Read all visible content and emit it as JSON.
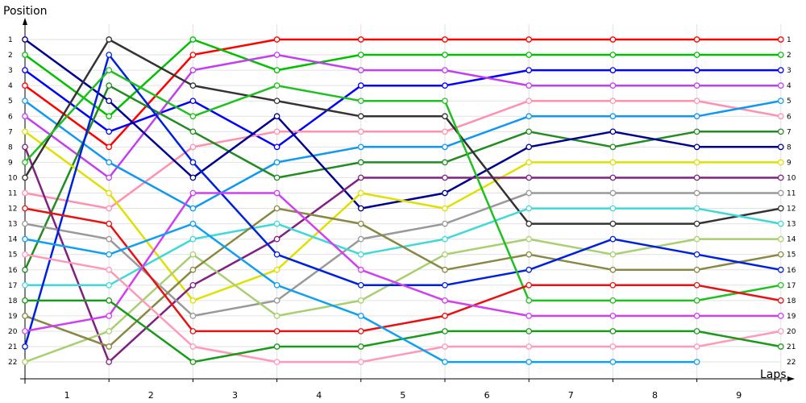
{
  "chart_data": {
    "type": "line",
    "ylabel": "Position",
    "xlabel": "Laps",
    "x_ticks": [
      "1",
      "2",
      "3",
      "4",
      "5",
      "6",
      "7",
      "8",
      "9"
    ],
    "y_ticks": [
      "1",
      "2",
      "3",
      "4",
      "5",
      "6",
      "7",
      "8",
      "9",
      "10",
      "11",
      "12",
      "13",
      "14",
      "15",
      "16",
      "17",
      "18",
      "19",
      "20",
      "21",
      "22"
    ],
    "ylim": [
      22,
      1
    ],
    "grid": true,
    "series": [
      {
        "color": "#ff0000",
        "values": [
          4,
          8,
          2,
          1,
          1,
          1,
          1,
          1,
          1,
          1
        ]
      },
      {
        "color": "#00c000",
        "values": [
          2,
          6,
          1,
          3,
          2,
          2,
          2,
          2,
          2,
          2
        ]
      },
      {
        "color": "#0000ff",
        "values": [
          3,
          7,
          5,
          8,
          4,
          4,
          3,
          3,
          3,
          3
        ]
      },
      {
        "color": "#c040f0",
        "values": [
          6,
          10,
          3,
          2,
          3,
          3,
          4,
          4,
          4,
          4
        ]
      },
      {
        "color": "#ff90b0",
        "values": [
          11,
          12,
          8,
          7,
          7,
          7,
          5,
          5,
          5,
          6
        ]
      },
      {
        "color": "#1098f0",
        "values": [
          5,
          9,
          12,
          9,
          8,
          8,
          6,
          6,
          6,
          5
        ]
      },
      {
        "color": "#228b22",
        "values": [
          16,
          4,
          7,
          10,
          9,
          9,
          7,
          8,
          7,
          7
        ]
      },
      {
        "color": "#000090",
        "values": [
          1,
          5,
          10,
          6,
          12,
          11,
          8,
          7,
          8,
          8
        ]
      },
      {
        "color": "#e0e000",
        "values": [
          7,
          11,
          18,
          16,
          11,
          12,
          9,
          9,
          9,
          9
        ]
      },
      {
        "color": "#802080",
        "values": [
          8,
          22,
          17,
          14,
          10,
          10,
          10,
          10,
          10,
          10
        ]
      },
      {
        "color": "#999999",
        "values": [
          13,
          14,
          19,
          18,
          14,
          13,
          11,
          11,
          11,
          11
        ]
      },
      {
        "color": "#333333",
        "values": [
          10,
          1,
          4,
          5,
          6,
          6,
          13,
          13,
          13,
          12
        ]
      },
      {
        "color": "#40d8d8",
        "values": [
          17,
          17,
          14,
          13,
          15,
          14,
          12,
          12,
          12,
          13
        ]
      },
      {
        "color": "#a8d070",
        "values": [
          22,
          20,
          15,
          19,
          18,
          15,
          14,
          15,
          14,
          14
        ]
      },
      {
        "color": "#888844",
        "values": [
          19,
          21,
          16,
          12,
          13,
          16,
          15,
          16,
          16,
          15
        ]
      },
      {
        "color": "#0020e0",
        "values": [
          21,
          2,
          9,
          15,
          17,
          17,
          16,
          14,
          15,
          16
        ]
      },
      {
        "color": "#20c020",
        "values": [
          9,
          3,
          6,
          4,
          5,
          5,
          18,
          18,
          18,
          17
        ]
      },
      {
        "color": "#e81010",
        "values": [
          12,
          13,
          20,
          20,
          20,
          19,
          17,
          17,
          17,
          18
        ]
      },
      {
        "color": "#d040f0",
        "values": [
          20,
          19,
          11,
          11,
          16,
          18,
          19,
          19,
          19,
          19
        ]
      },
      {
        "color": "#ff99b8",
        "values": [
          15,
          16,
          21,
          22,
          22,
          21,
          21,
          21,
          21,
          20
        ]
      },
      {
        "color": "#1a9a1a",
        "values": [
          18,
          18,
          22,
          21,
          21,
          20,
          20,
          20,
          20,
          21
        ]
      },
      {
        "color": "#10a0f0",
        "values": [
          14,
          15,
          13,
          17,
          19,
          22,
          22,
          22,
          22,
          null
        ]
      }
    ]
  }
}
